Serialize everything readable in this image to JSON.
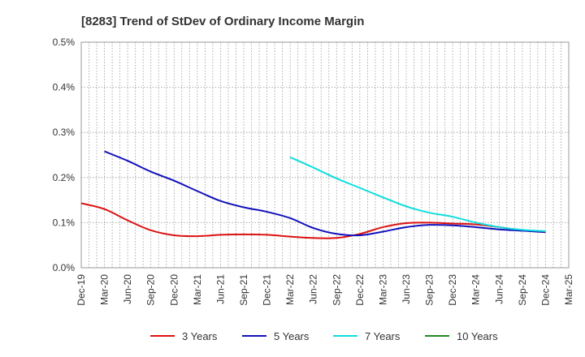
{
  "chart_data": {
    "type": "line",
    "title": "[8283]  Trend of StDev of Ordinary Income Margin",
    "xlabel": "",
    "ylabel": "",
    "ylim": [
      0,
      0.5
    ],
    "y_ticks": [
      "0.0%",
      "0.1%",
      "0.2%",
      "0.3%",
      "0.4%",
      "0.5%"
    ],
    "x_ticks": [
      "Dec-19",
      "Mar-20",
      "Jun-20",
      "Sep-20",
      "Dec-20",
      "Mar-21",
      "Jun-21",
      "Sep-21",
      "Dec-21",
      "Mar-22",
      "Jun-22",
      "Sep-22",
      "Dec-22",
      "Mar-23",
      "Jun-23",
      "Sep-23",
      "Dec-23",
      "Mar-24",
      "Jun-24",
      "Sep-24",
      "Dec-24",
      "Mar-25"
    ],
    "grid": true,
    "legend_position": "bottom",
    "series": [
      {
        "name": "3 Years",
        "color": "#dd1111",
        "x": [
          "Dec-19",
          "Mar-20",
          "Jun-20",
          "Sep-20",
          "Dec-20",
          "Mar-21",
          "Jun-21",
          "Sep-21",
          "Dec-21",
          "Mar-22",
          "Jun-22",
          "Sep-22",
          "Dec-22",
          "Mar-23",
          "Jun-23",
          "Sep-23",
          "Dec-23",
          "Mar-24",
          "Jun-24",
          "Sep-24",
          "Dec-24"
        ],
        "values": [
          0.143,
          0.13,
          0.105,
          0.083,
          0.072,
          0.07,
          0.073,
          0.074,
          0.073,
          0.069,
          0.066,
          0.066,
          0.075,
          0.09,
          0.099,
          0.1,
          0.098,
          0.096,
          0.09,
          0.083,
          0.079
        ]
      },
      {
        "name": "5 Years",
        "color": "#1111bb",
        "x": [
          "Mar-20",
          "Jun-20",
          "Sep-20",
          "Dec-20",
          "Mar-21",
          "Jun-21",
          "Sep-21",
          "Dec-21",
          "Mar-22",
          "Jun-22",
          "Sep-22",
          "Dec-22",
          "Mar-23",
          "Jun-23",
          "Sep-23",
          "Dec-23",
          "Mar-24",
          "Jun-24",
          "Sep-24",
          "Dec-24"
        ],
        "values": [
          0.258,
          0.237,
          0.213,
          0.193,
          0.17,
          0.148,
          0.134,
          0.124,
          0.11,
          0.088,
          0.075,
          0.072,
          0.08,
          0.09,
          0.095,
          0.094,
          0.09,
          0.085,
          0.082,
          0.079
        ]
      },
      {
        "name": "7 Years",
        "color": "#11dddd",
        "x": [
          "Mar-22",
          "Jun-22",
          "Sep-22",
          "Dec-22",
          "Mar-23",
          "Jun-23",
          "Sep-23",
          "Dec-23",
          "Mar-24",
          "Jun-24",
          "Sep-24",
          "Dec-24"
        ],
        "values": [
          0.245,
          0.222,
          0.198,
          0.177,
          0.156,
          0.136,
          0.122,
          0.113,
          0.1,
          0.09,
          0.084,
          0.081
        ]
      },
      {
        "name": "10 Years",
        "color": "#228822",
        "x": [],
        "values": []
      }
    ]
  }
}
